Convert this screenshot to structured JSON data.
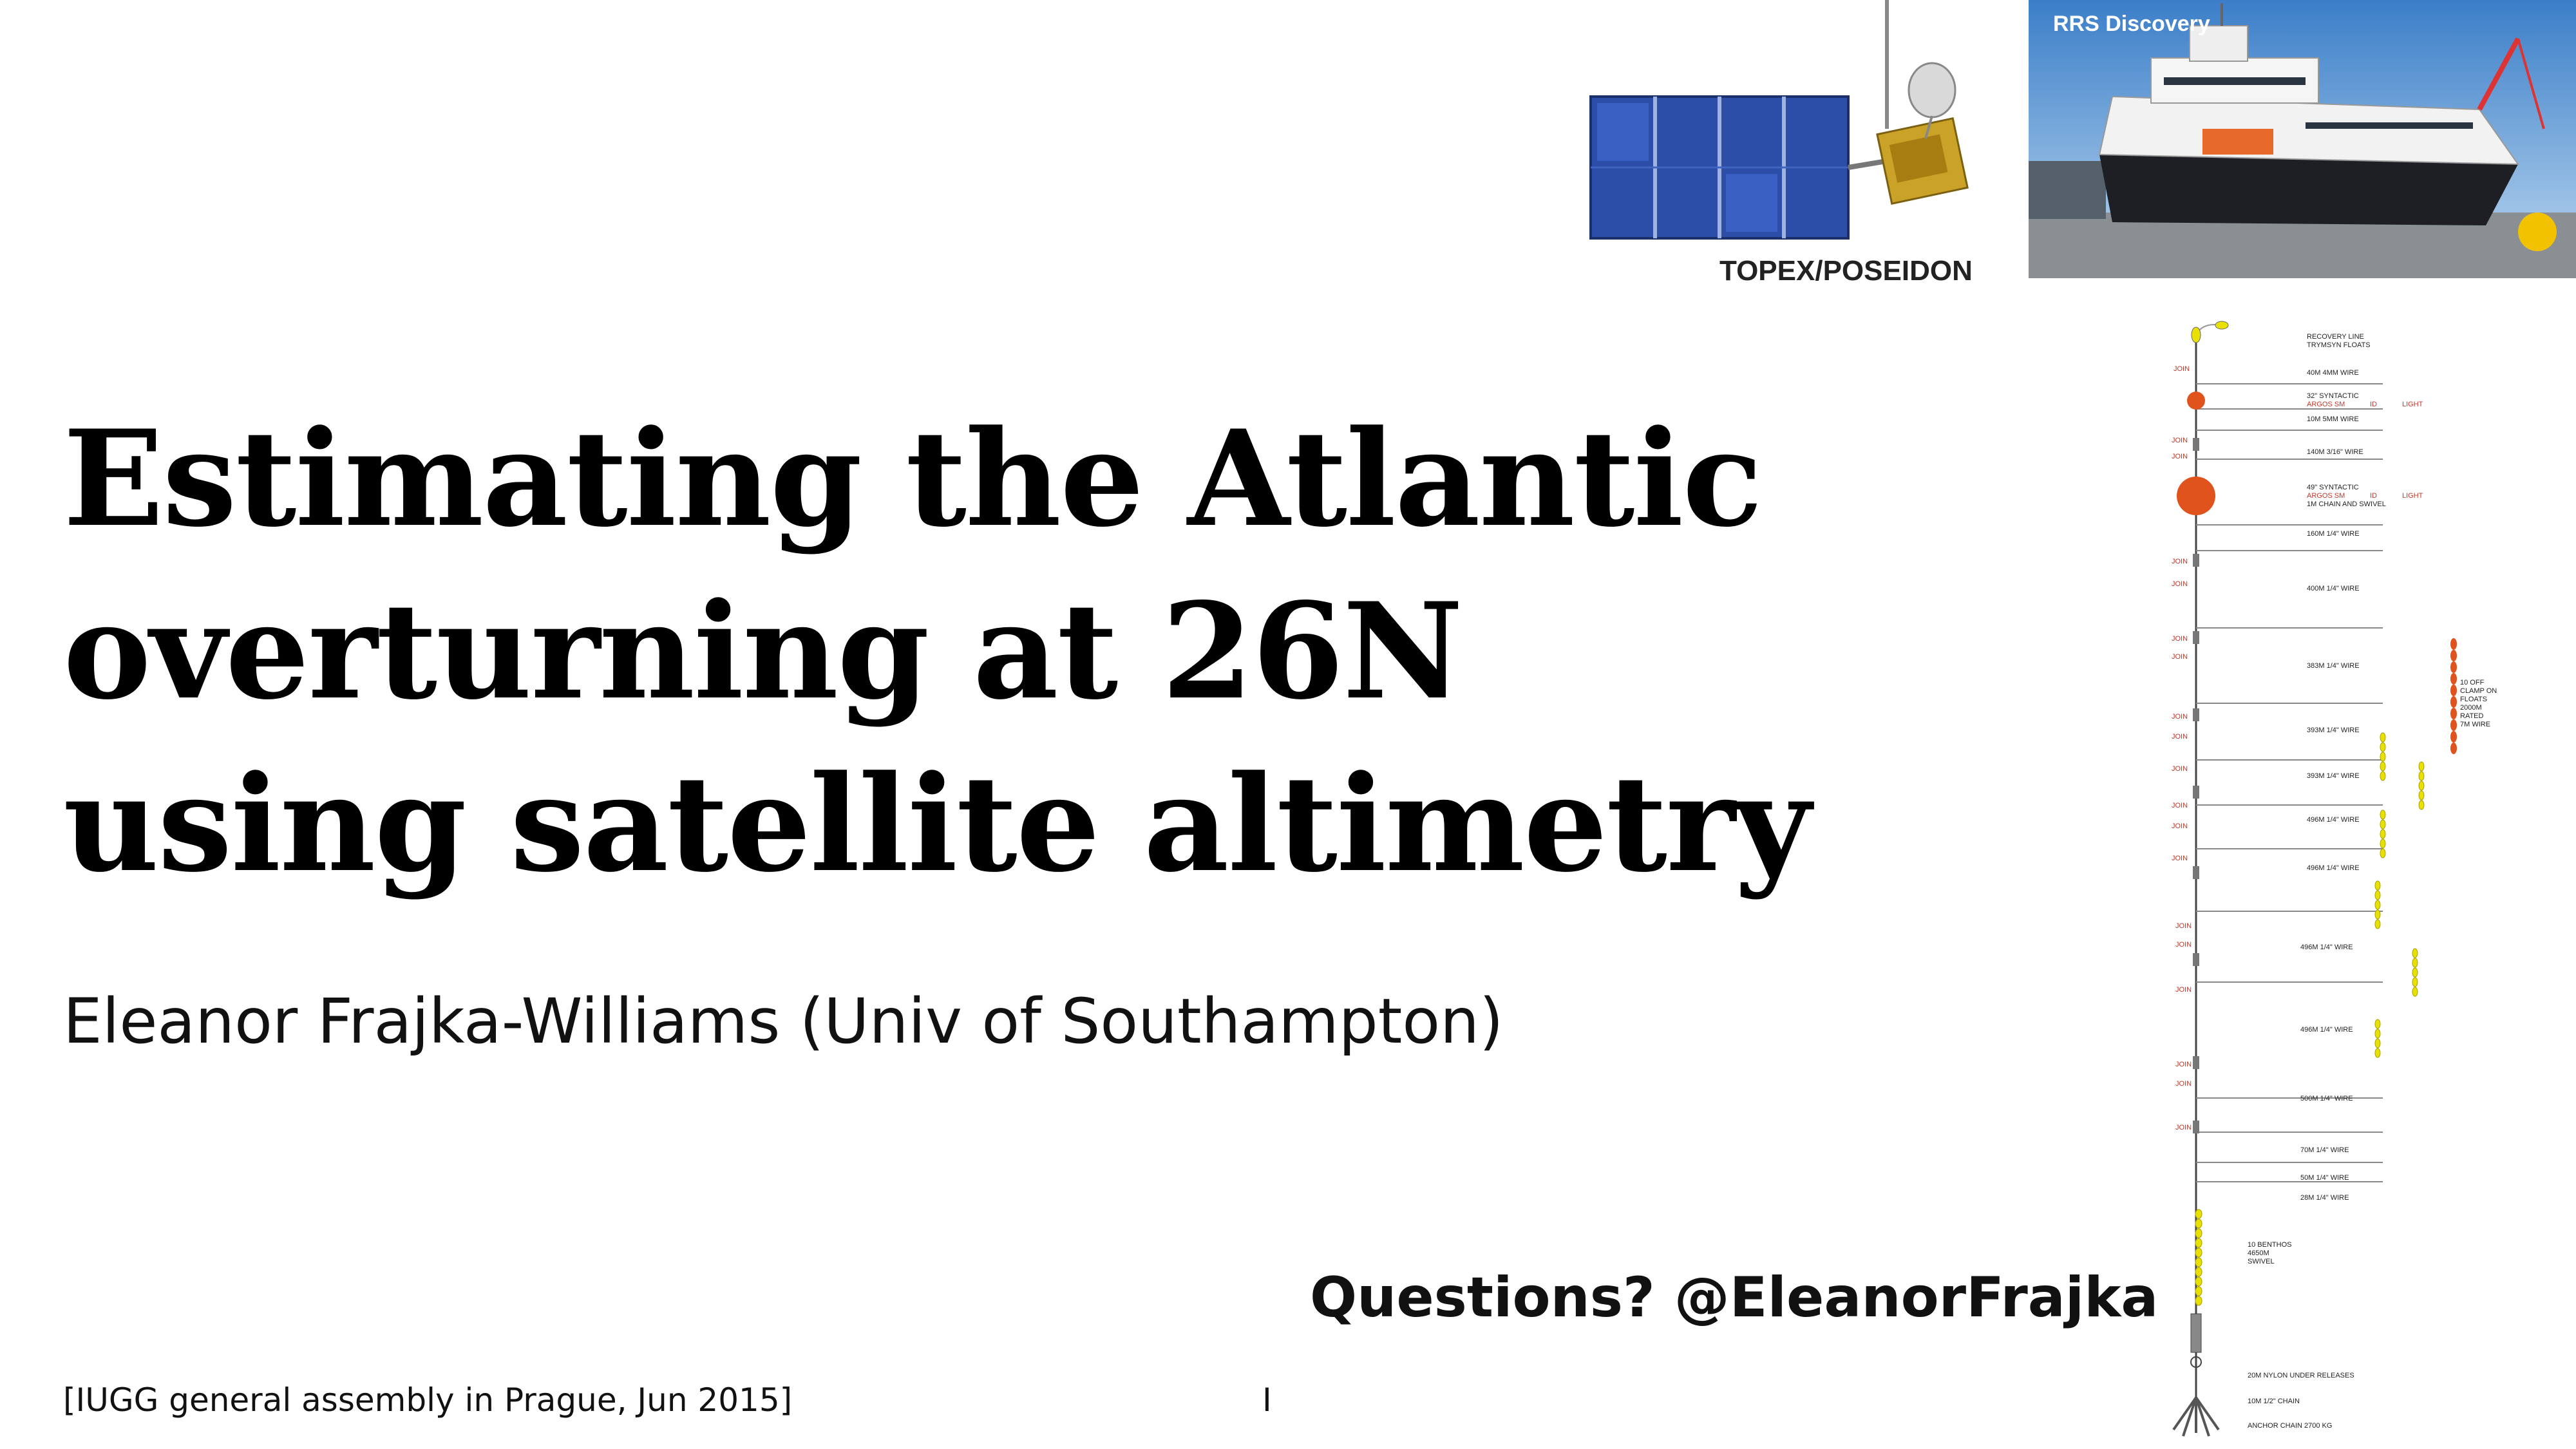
{
  "title_lines": [
    "Estimating the Atlantic",
    "overturning at 26N",
    "using satellite altimetry"
  ],
  "author": "Eleanor Frajka-Williams (Univ of Southampton)",
  "questions": "Questions?  @EleanorFrajka",
  "footer": "[IUGG general assembly in Prague, Jun 2015]",
  "page_number": "I",
  "satellite_caption": "TOPEX/POSEIDON",
  "ship_caption": "RRS Discovery",
  "mooring": {
    "recovery": "RECOVERY LINE",
    "trymsyn": "TRYMSYN FLOATS",
    "w40": "40M 4MM WIRE",
    "syn32": "32\" SYNTACTIC",
    "argos1": "ARGOS SM",
    "id1": "ID",
    "light1": "LIGHT",
    "w10": "10M 5MM WIRE",
    "w140": "140M 3/16\" WIRE",
    "syn49": "49\" SYNTACTIC",
    "argos2": "ARGOS SM",
    "id2": "ID",
    "light2": "LIGHT",
    "chain1": "1M CHAIN AND SWIVEL",
    "w160": "160M 1/4\" WIRE",
    "w400": "400M 1/4\" WIRE",
    "w383": "383M 1/4\" WIRE",
    "w393a": "393M 1/4\" WIRE",
    "w393b": "393M 1/4\" WIRE",
    "w496a": "496M 1/4\" WIRE",
    "w496b": "496M 1/4\" WIRE",
    "w496c": "496M 1/4\" WIRE",
    "w496d": "496M 1/4\" WIRE",
    "w500": "500M 1/4\" WIRE",
    "w70": "70M 1/4\" WIRE",
    "w50": "50M 1/4\" WIRE",
    "w28": "28M 1/4\" WIRE",
    "clamp": [
      "10 OFF",
      "CLAMP ON",
      "FLOATS",
      "2000M",
      "RATED",
      "7M WIRE"
    ],
    "benthos": [
      "10 BENTHOS",
      "4650M",
      "SWIVEL"
    ],
    "nylon": "20M NYLON UNDER RELEASES",
    "chain_half": "10M 1/2\" CHAIN",
    "anchor": "ANCHOR CHAIN 2700 KG",
    "join": "JOIN"
  },
  "colors": {
    "text": "#111111",
    "mooring_red": "#c0392b",
    "float_orange": "#e0531c",
    "float_yellow": "#e8e000",
    "panel_blue": "#2d4ea8"
  }
}
